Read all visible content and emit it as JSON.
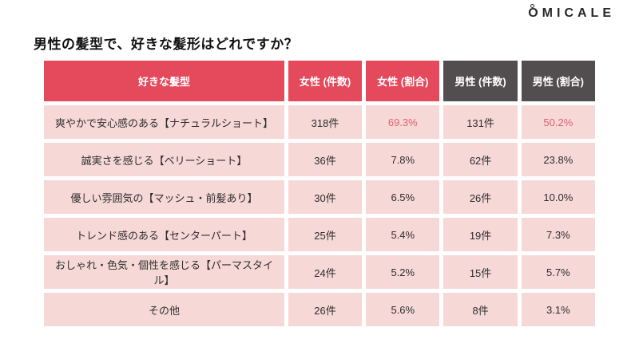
{
  "logo": {
    "text": "OMICALE"
  },
  "title": "男性の髪型で、好きな髪形はどれですか？",
  "table": {
    "columns": [
      "好きな髪型",
      "女性 (件数)",
      "女性 (割合)",
      "男性 (件数)",
      "男性 (割合)"
    ],
    "rows": [
      {
        "label": "爽やかで安心感のある【ナチュラルショート】",
        "female_count": "318件",
        "female_pct": "69.3%",
        "male_count": "131件",
        "male_pct": "50.2%",
        "highlight": true
      },
      {
        "label": "誠実さを感じる【ベリーショート】",
        "female_count": "36件",
        "female_pct": "7.8%",
        "male_count": "62件",
        "male_pct": "23.8%",
        "highlight": false
      },
      {
        "label": "優しい雰囲気の【マッシュ・前髪あり】",
        "female_count": "30件",
        "female_pct": "6.5%",
        "male_count": "26件",
        "male_pct": "10.0%",
        "highlight": false
      },
      {
        "label": "トレンド感のある【センターパート】",
        "female_count": "25件",
        "female_pct": "5.4%",
        "male_count": "19件",
        "male_pct": "7.3%",
        "highlight": false
      },
      {
        "label": "おしゃれ・色気・個性を感じる【パーマスタイル】",
        "female_count": "24件",
        "female_pct": "5.2%",
        "male_count": "15件",
        "male_pct": "5.7%",
        "highlight": false
      },
      {
        "label": "その他",
        "female_count": "26件",
        "female_pct": "5.6%",
        "male_count": "8件",
        "male_pct": "3.1%",
        "highlight": false
      }
    ]
  },
  "chart_data": {
    "type": "table",
    "title": "男性の髪型で、好きな髪形はどれですか？",
    "columns": [
      "好きな髪型",
      "女性 (件数)",
      "女性 (割合)",
      "男性 (件数)",
      "男性 (割合)"
    ],
    "rows": [
      [
        "爽やかで安心感のある【ナチュラルショート】",
        318,
        69.3,
        131,
        50.2
      ],
      [
        "誠実さを感じる【ベリーショート】",
        36,
        7.8,
        62,
        23.8
      ],
      [
        "優しい雰囲気の【マッシュ・前髪あり】",
        30,
        6.5,
        26,
        10.0
      ],
      [
        "トレンド感のある【センターパート】",
        25,
        5.4,
        19,
        7.3
      ],
      [
        "おしゃれ・色気・個性を感じる【パーマスタイル】",
        24,
        5.2,
        15,
        5.7
      ],
      [
        "その他",
        26,
        5.6,
        8,
        3.1
      ]
    ],
    "units": {
      "count": "件",
      "pct": "%"
    }
  },
  "colors": {
    "accent-red": "#e5495c",
    "header-dark": "#524e4f",
    "cell-pink": "#f6d8d7",
    "highlight-text": "#e0606f",
    "text-dark": "#2e2e2e",
    "logo-color": "#2b2626"
  }
}
